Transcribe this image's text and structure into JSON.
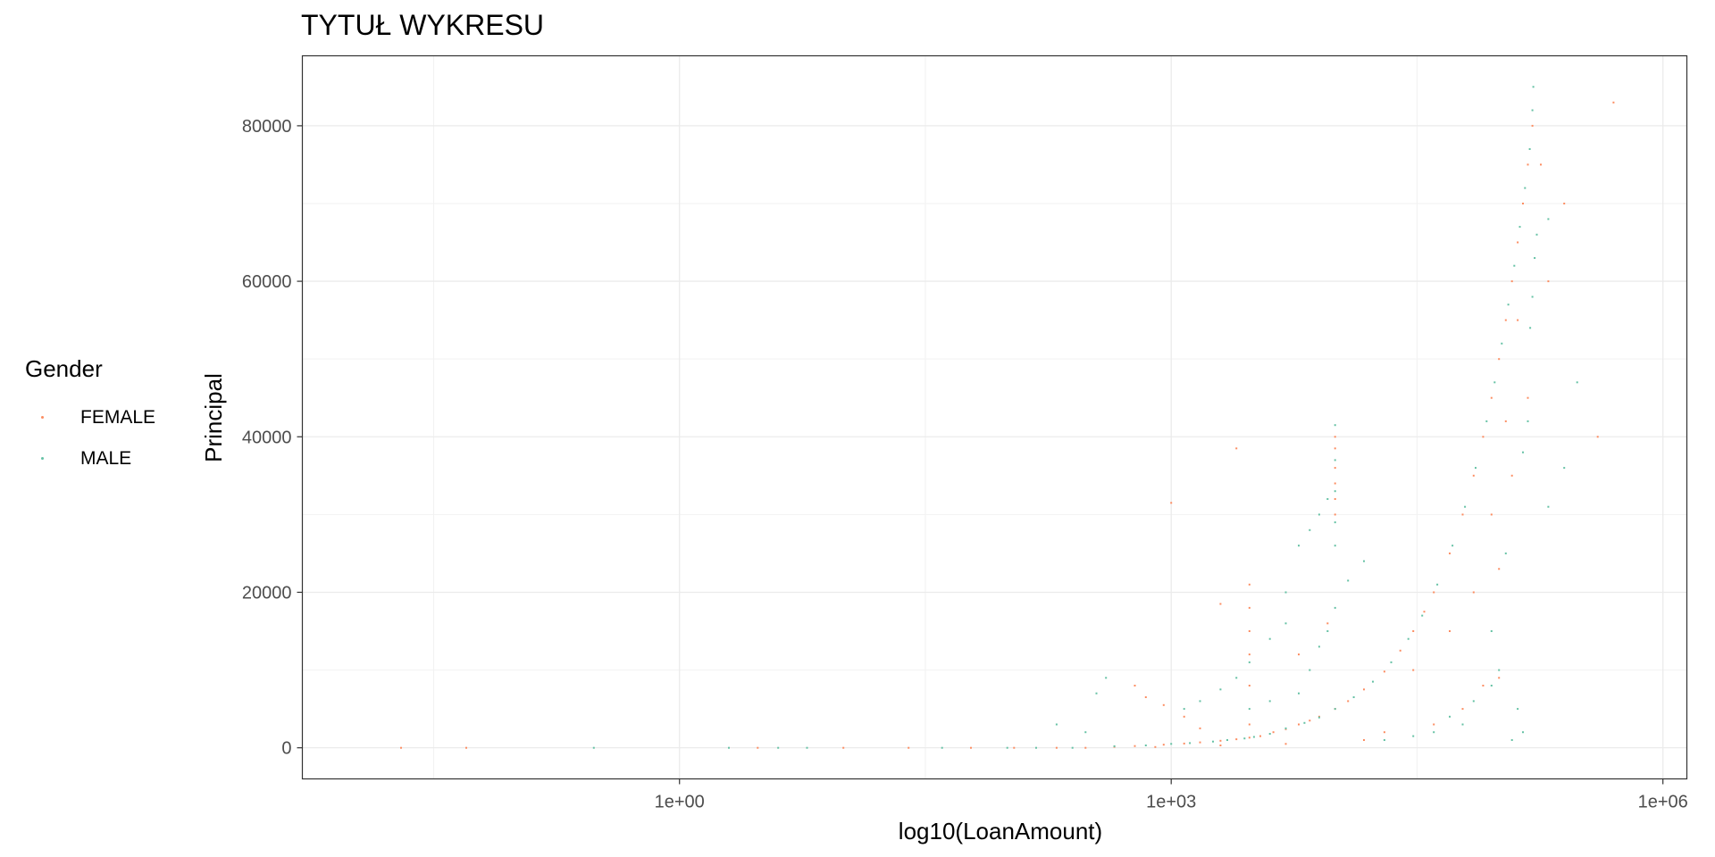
{
  "chart_data": {
    "type": "scatter",
    "title": "TYTUŁ WYKRESU",
    "xlabel": "log10(LoanAmount)",
    "ylabel": "Principal",
    "x_scale": "log10",
    "xlim": [
      0.005,
      1400000
    ],
    "ylim": [
      -4000,
      89000
    ],
    "x_ticks": [
      1,
      1000,
      1000000
    ],
    "x_tick_labels": [
      "1e+00",
      "1e+03",
      "1e+06"
    ],
    "y_ticks": [
      0,
      20000,
      40000,
      60000,
      80000
    ],
    "y_tick_labels": [
      "0",
      "20000",
      "40000",
      "60000",
      "80000"
    ],
    "grid": true,
    "legend": {
      "title": "Gender",
      "placement": "left",
      "entries": [
        {
          "label": "FEMALE",
          "color": "#FC8D62"
        },
        {
          "label": "MALE",
          "color": "#66C2A5"
        }
      ]
    },
    "series": [
      {
        "name": "FEMALE",
        "color": "#FC8D62",
        "points": [
          [
            0.02,
            0
          ],
          [
            0.05,
            0
          ],
          [
            3,
            0
          ],
          [
            10,
            0
          ],
          [
            25,
            0
          ],
          [
            60,
            0
          ],
          [
            110,
            0
          ],
          [
            200,
            0
          ],
          [
            300,
            0
          ],
          [
            450,
            120
          ],
          [
            600,
            220
          ],
          [
            900,
            400
          ],
          [
            1200,
            550
          ],
          [
            1500,
            700
          ],
          [
            2000,
            900
          ],
          [
            2500,
            1100
          ],
          [
            3000,
            1300
          ],
          [
            3500,
            1500
          ],
          [
            4200,
            2000
          ],
          [
            5000,
            2400
          ],
          [
            6000,
            3000
          ],
          [
            7000,
            3500
          ],
          [
            8000,
            4000
          ],
          [
            10000,
            5000
          ],
          [
            12000,
            6000
          ],
          [
            15000,
            7500
          ],
          [
            20000,
            9800
          ],
          [
            25000,
            12500
          ],
          [
            30000,
            15000
          ],
          [
            35000,
            17500
          ],
          [
            40000,
            20000
          ],
          [
            50000,
            25000
          ],
          [
            60000,
            30000
          ],
          [
            70000,
            35000
          ],
          [
            80000,
            40000
          ],
          [
            90000,
            45000
          ],
          [
            100000,
            50000
          ],
          [
            110000,
            55000
          ],
          [
            120000,
            60000
          ],
          [
            130000,
            65000
          ],
          [
            140000,
            70000
          ],
          [
            150000,
            75000
          ],
          [
            160000,
            80000
          ],
          [
            3000,
            3000
          ],
          [
            3000,
            8000
          ],
          [
            3000,
            12000
          ],
          [
            3000,
            15000
          ],
          [
            3000,
            18000
          ],
          [
            3000,
            21000
          ],
          [
            10000,
            38500
          ],
          [
            10000,
            36000
          ],
          [
            10000,
            34000
          ],
          [
            10000,
            32000
          ],
          [
            10000,
            30000
          ],
          [
            10000,
            40000
          ],
          [
            2000,
            18500
          ],
          [
            1000,
            31500
          ],
          [
            2500,
            38500
          ],
          [
            180000,
            75000
          ],
          [
            250000,
            70000
          ],
          [
            400000,
            40000
          ],
          [
            500000,
            83000
          ],
          [
            200000,
            60000
          ],
          [
            15000,
            1000
          ],
          [
            20000,
            2000
          ],
          [
            40000,
            3000
          ],
          [
            60000,
            5000
          ],
          [
            80000,
            8000
          ],
          [
            100000,
            9000
          ],
          [
            5000,
            500
          ],
          [
            2000,
            300
          ],
          [
            800,
            100
          ],
          [
            1500,
            2500
          ],
          [
            1200,
            4000
          ],
          [
            900,
            5500
          ],
          [
            700,
            6500
          ],
          [
            600,
            8000
          ],
          [
            6000,
            12000
          ],
          [
            9000,
            16000
          ],
          [
            30000,
            10000
          ],
          [
            50000,
            15000
          ],
          [
            70000,
            20000
          ],
          [
            90000,
            30000
          ],
          [
            100000,
            23000
          ],
          [
            120000,
            35000
          ],
          [
            150000,
            45000
          ],
          [
            130000,
            55000
          ],
          [
            110000,
            42000
          ]
        ]
      },
      {
        "name": "MALE",
        "color": "#66C2A5",
        "points": [
          [
            0.3,
            0
          ],
          [
            2,
            0
          ],
          [
            4,
            0
          ],
          [
            6,
            0
          ],
          [
            40,
            0
          ],
          [
            150,
            0
          ],
          [
            250,
            0
          ],
          [
            450,
            200
          ],
          [
            700,
            300
          ],
          [
            1000,
            500
          ],
          [
            1300,
            600
          ],
          [
            1800,
            800
          ],
          [
            2200,
            1000
          ],
          [
            2800,
            1200
          ],
          [
            3200,
            1400
          ],
          [
            4000,
            1800
          ],
          [
            5000,
            2500
          ],
          [
            6500,
            3200
          ],
          [
            8000,
            3900
          ],
          [
            10000,
            5000
          ],
          [
            13000,
            6500
          ],
          [
            17000,
            8500
          ],
          [
            22000,
            11000
          ],
          [
            28000,
            14000
          ],
          [
            34000,
            17000
          ],
          [
            42000,
            21000
          ],
          [
            52000,
            26000
          ],
          [
            62000,
            31000
          ],
          [
            72000,
            36000
          ],
          [
            84000,
            42000
          ],
          [
            94000,
            47000
          ],
          [
            104000,
            52000
          ],
          [
            114000,
            57000
          ],
          [
            124000,
            62000
          ],
          [
            134000,
            67000
          ],
          [
            144000,
            72000
          ],
          [
            154000,
            77000
          ],
          [
            160000,
            82000
          ],
          [
            162000,
            85000
          ],
          [
            10000,
            41500
          ],
          [
            10000,
            37000
          ],
          [
            10000,
            33000
          ],
          [
            10000,
            29000
          ],
          [
            10000,
            26000
          ],
          [
            5000,
            20000
          ],
          [
            5000,
            16000
          ],
          [
            4000,
            14000
          ],
          [
            3000,
            11000
          ],
          [
            2500,
            9000
          ],
          [
            2000,
            7500
          ],
          [
            1500,
            6000
          ],
          [
            1200,
            5000
          ],
          [
            100,
            0
          ],
          [
            200,
            3000
          ],
          [
            300,
            2000
          ],
          [
            400,
            9000
          ],
          [
            350,
            7000
          ],
          [
            6000,
            26000
          ],
          [
            7000,
            28000
          ],
          [
            8000,
            30000
          ],
          [
            9000,
            32000
          ],
          [
            3000,
            5000
          ],
          [
            4000,
            6000
          ],
          [
            6000,
            7000
          ],
          [
            7000,
            10000
          ],
          [
            8000,
            13000
          ],
          [
            9000,
            15000
          ],
          [
            10000,
            18000
          ],
          [
            12000,
            21500
          ],
          [
            15000,
            24000
          ],
          [
            200000,
            68000
          ],
          [
            300000,
            47000
          ],
          [
            250000,
            36000
          ],
          [
            120000,
            1000
          ],
          [
            140000,
            2000
          ],
          [
            130000,
            5000
          ],
          [
            100000,
            10000
          ],
          [
            90000,
            15000
          ],
          [
            110000,
            25000
          ],
          [
            140000,
            38000
          ],
          [
            160000,
            58000
          ],
          [
            165000,
            63000
          ],
          [
            40000,
            2000
          ],
          [
            60000,
            3000
          ],
          [
            70000,
            6000
          ],
          [
            90000,
            8000
          ],
          [
            20000,
            1000
          ],
          [
            30000,
            1500
          ],
          [
            50000,
            4000
          ],
          [
            200000,
            31000
          ],
          [
            150000,
            42000
          ],
          [
            170000,
            66000
          ],
          [
            155000,
            54000
          ]
        ]
      }
    ]
  }
}
